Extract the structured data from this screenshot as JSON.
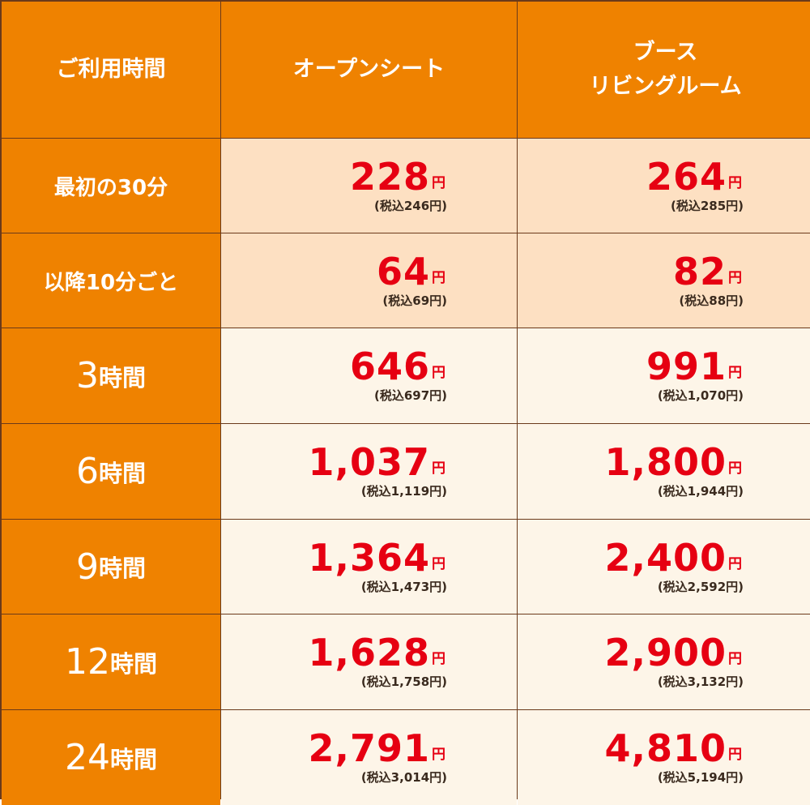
{
  "header": {
    "col1": "ご利用時間",
    "col2": "オープンシート",
    "col3_line1": "ブース",
    "col3_line2": "リビングルーム"
  },
  "yen": "円",
  "rows": [
    {
      "label": "最初の30分",
      "style": "peach",
      "open": {
        "amount": "228",
        "tax": "(税込246円)"
      },
      "booth": {
        "amount": "264",
        "tax": "(税込285円)"
      }
    },
    {
      "label": "以降10分ごと",
      "style": "peach",
      "open": {
        "amount": "64",
        "tax": "(税込69円)"
      },
      "booth": {
        "amount": "82",
        "tax": "(税込88円)"
      }
    },
    {
      "label_num": "3",
      "label_unit": "時間",
      "style": "cream",
      "open": {
        "amount": "646",
        "tax": "(税込697円)"
      },
      "booth": {
        "amount": "991",
        "tax": "(税込1,070円)"
      }
    },
    {
      "label_num": "6",
      "label_unit": "時間",
      "style": "cream",
      "open": {
        "amount": "1,037",
        "tax": "(税込1,119円)"
      },
      "booth": {
        "amount": "1,800",
        "tax": "(税込1,944円)"
      }
    },
    {
      "label_num": "9",
      "label_unit": "時間",
      "style": "cream",
      "open": {
        "amount": "1,364",
        "tax": "(税込1,473円)"
      },
      "booth": {
        "amount": "2,400",
        "tax": "(税込2,592円)"
      }
    },
    {
      "label_num": "12",
      "label_unit": "時間",
      "style": "cream",
      "open": {
        "amount": "1,628",
        "tax": "(税込1,758円)"
      },
      "booth": {
        "amount": "2,900",
        "tax": "(税込3,132円)"
      }
    },
    {
      "label_num": "24",
      "label_unit": "時間",
      "style": "cream",
      "open": {
        "amount": "2,791",
        "tax": "(税込3,014円)"
      },
      "booth": {
        "amount": "4,810",
        "tax": "(税込5,194円)"
      }
    }
  ],
  "colors": {
    "header_bg": "#ef8200",
    "peach_bg": "#fde0c2",
    "cream_bg": "#fdf5e8",
    "price_red": "#e60012",
    "border": "#6b3a1a"
  }
}
